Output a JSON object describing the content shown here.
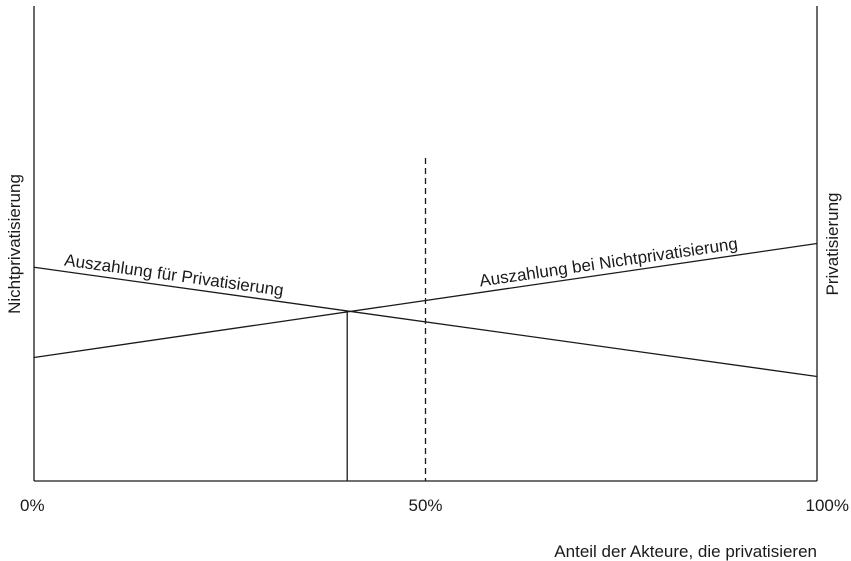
{
  "chart_data": {
    "type": "line",
    "xlabel": "Anteil der Akteure, die privatisieren",
    "left_axis_label": "Nichtprivatisierung",
    "right_axis_label": "Privatisierung",
    "x_ticks": [
      "0%",
      "50%",
      "100%"
    ],
    "xlim": [
      0,
      100
    ],
    "ylim": [
      0,
      100
    ],
    "grid": false,
    "series": [
      {
        "name": "Auszahlung für Privatisierung",
        "x": [
          0,
          100
        ],
        "values": [
          45,
          22
        ],
        "color": "#1a1a1a"
      },
      {
        "name": "Auszahlung bei Nichtprivatisierung",
        "x": [
          0,
          100
        ],
        "values": [
          26,
          50
        ],
        "color": "#1a1a1a"
      }
    ],
    "reference_lines": {
      "equilibrium_x": 40,
      "midpoint_x": 50,
      "midpoint_top": 68
    }
  }
}
